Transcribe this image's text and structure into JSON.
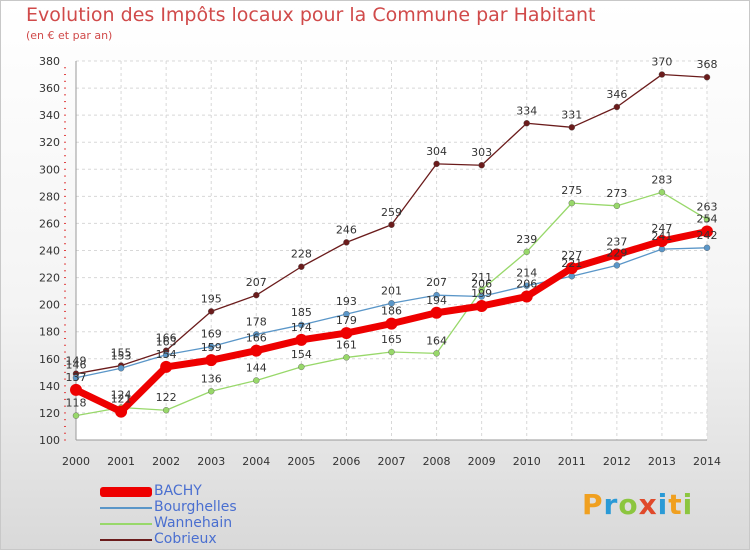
{
  "title": "Evolution des Impôts locaux pour la Commune par Habitant",
  "subtitle": "(en € et par an)",
  "chart_data": {
    "type": "line",
    "categories": [
      "2000",
      "2001",
      "2002",
      "2003",
      "2004",
      "2005",
      "2006",
      "2007",
      "2008",
      "2009",
      "2010",
      "2011",
      "2012",
      "2013",
      "2014"
    ],
    "ylim": [
      100,
      380
    ],
    "yticks": [
      100,
      120,
      140,
      160,
      180,
      200,
      220,
      240,
      260,
      280,
      300,
      320,
      340,
      360,
      380
    ],
    "grid": true,
    "legend_position": "bottom-left",
    "series": [
      {
        "name": "Cobrieux",
        "color": "#6b1c1c",
        "values": [
          149,
          155,
          166,
          195,
          207,
          228,
          246,
          259,
          304,
          303,
          334,
          331,
          346,
          370,
          368
        ]
      },
      {
        "name": "Wannehain",
        "color": "#98d86a",
        "values": [
          118,
          124,
          122,
          136,
          144,
          154,
          161,
          165,
          164,
          211,
          239,
          275,
          273,
          283,
          263
        ]
      },
      {
        "name": "Bourghelles",
        "color": "#5a96c8",
        "values": [
          146,
          153,
          163,
          169,
          178,
          185,
          193,
          201,
          207,
          206,
          214,
          221,
          229,
          241,
          242
        ]
      },
      {
        "name": "BACHY",
        "color": "#ee0000",
        "values": [
          137,
          121,
          154,
          159,
          166,
          174,
          179,
          186,
          194,
          199,
          206,
          227,
          237,
          247,
          254
        ]
      }
    ],
    "data_labels": {
      "Cobrieux": [
        "149",
        "155",
        "166",
        "195",
        "207",
        "228",
        "246",
        "259",
        "304",
        "303",
        "334",
        "331",
        "346",
        "370",
        "368"
      ],
      "Wannehain": [
        "118",
        "124",
        "122",
        "136",
        "144",
        "154",
        "161",
        "165",
        "164",
        "211",
        "239",
        "275",
        "273",
        "283",
        "263"
      ],
      "Bourghelles": [
        "146",
        "153",
        "163",
        "169",
        "178",
        "185",
        "193",
        "201",
        "207",
        "206",
        "214",
        "221",
        "229",
        "241",
        "242"
      ],
      "BACHY": [
        "137",
        "121",
        "154",
        "159",
        "166",
        "174",
        "179",
        "186",
        "194",
        "199",
        "206",
        "227",
        "237",
        "247",
        "254"
      ]
    }
  },
  "legend": [
    {
      "label": "BACHY",
      "color": "#ee0000",
      "thickness": "thick"
    },
    {
      "label": "Bourghelles",
      "color": "#5a96c8",
      "thickness": "thin"
    },
    {
      "label": "Wannehain",
      "color": "#98d86a",
      "thickness": "thin"
    },
    {
      "label": "Cobrieux",
      "color": "#6b1c1c",
      "thickness": "thin"
    }
  ],
  "logo": {
    "text": "Proxiti",
    "letters": [
      "P",
      "r",
      "o",
      "x",
      "i",
      "t",
      "i"
    ],
    "colors": [
      "#f0a020",
      "#2a9ad6",
      "#8cc63f",
      "#e0492a",
      "#2a9ad6",
      "#f0a020",
      "#8cc63f"
    ]
  }
}
